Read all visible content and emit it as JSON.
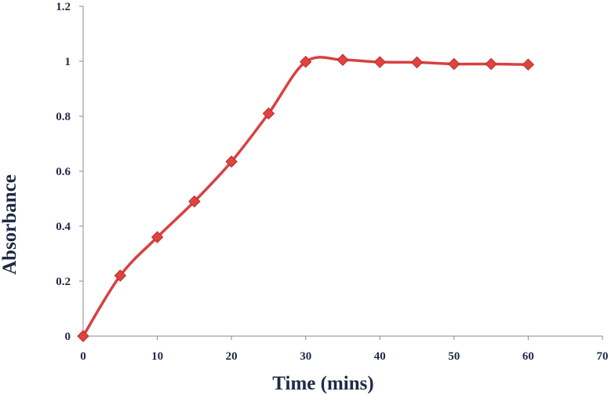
{
  "chart_data": {
    "type": "line",
    "title": "",
    "xlabel": "Time (mins)",
    "ylabel": "Absorbance",
    "xlim": [
      0,
      70
    ],
    "ylim": [
      0,
      1.2
    ],
    "x_ticks": [
      "0",
      "10",
      "20",
      "30",
      "40",
      "50",
      "60",
      "70"
    ],
    "y_ticks": [
      "0",
      "0.2",
      "0.4",
      "0.6",
      "0.8",
      "1",
      "1.2"
    ],
    "grid": false,
    "legend": "none",
    "line_color": "#d94040",
    "marker": "diamond",
    "series": [
      {
        "x": [
          0,
          5,
          10,
          15,
          20,
          25,
          30,
          35,
          40,
          45,
          50,
          55,
          60
        ],
        "y": [
          0,
          0.22,
          0.36,
          0.49,
          0.635,
          0.81,
          0.998,
          1.005,
          0.997,
          0.996,
          0.99,
          0.99,
          0.988
        ]
      }
    ]
  }
}
